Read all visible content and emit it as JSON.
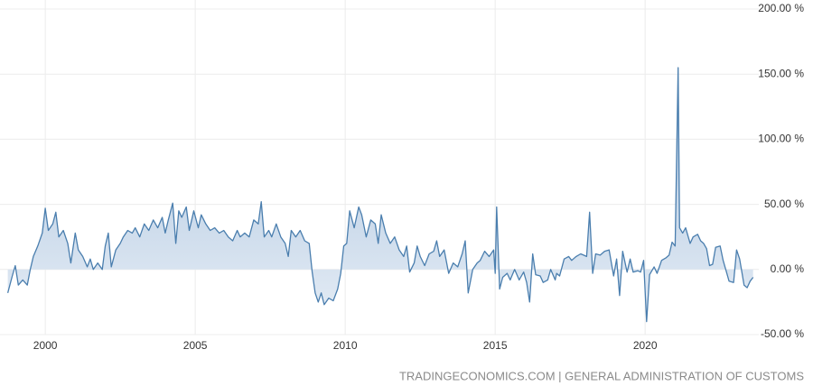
{
  "chart_data": {
    "type": "area",
    "source": "TRADINGECONOMICS.COM | GENERAL ADMINISTRATION OF CUSTOMS",
    "xlim": [
      1998.49,
      2023.79
    ],
    "xticks": [
      2000,
      2005,
      2010,
      2015,
      2020
    ],
    "ylim": [
      -50,
      200
    ],
    "yticks": [
      {
        "value": 200,
        "label": "200.00 %"
      },
      {
        "value": 150,
        "label": "150.00 %"
      },
      {
        "value": 100,
        "label": "100.00 %"
      },
      {
        "value": 50,
        "label": "50.00 %"
      },
      {
        "value": 0,
        "label": "0.00 %"
      },
      {
        "value": -50,
        "label": "-50.00 %"
      }
    ],
    "grid": true,
    "series": [
      {
        "color": "#4a7eae",
        "x": [
          1998.75,
          1998.9,
          1999.0,
          1999.1,
          1999.25,
          1999.4,
          1999.5,
          1999.6,
          1999.75,
          1999.9,
          2000.0,
          2000.1,
          2000.25,
          2000.35,
          2000.45,
          2000.6,
          2000.75,
          2000.85,
          2001.0,
          2001.1,
          2001.25,
          2001.4,
          2001.5,
          2001.6,
          2001.75,
          2001.9,
          2002.0,
          2002.1,
          2002.2,
          2002.35,
          2002.5,
          2002.6,
          2002.75,
          2002.9,
          2003.0,
          2003.15,
          2003.3,
          2003.45,
          2003.6,
          2003.75,
          2003.9,
          2004.0,
          2004.1,
          2004.25,
          2004.35,
          2004.45,
          2004.55,
          2004.7,
          2004.8,
          2004.95,
          2005.1,
          2005.2,
          2005.35,
          2005.5,
          2005.65,
          2005.8,
          2005.95,
          2006.1,
          2006.25,
          2006.4,
          2006.5,
          2006.65,
          2006.8,
          2006.95,
          2007.1,
          2007.2,
          2007.3,
          2007.45,
          2007.55,
          2007.7,
          2007.85,
          2008.0,
          2008.1,
          2008.2,
          2008.35,
          2008.5,
          2008.65,
          2008.8,
          2008.9,
          2009.0,
          2009.1,
          2009.2,
          2009.3,
          2009.45,
          2009.6,
          2009.75,
          2009.85,
          2009.95,
          2010.05,
          2010.15,
          2010.3,
          2010.45,
          2010.55,
          2010.7,
          2010.85,
          2011.0,
          2011.1,
          2011.2,
          2011.35,
          2011.5,
          2011.65,
          2011.8,
          2011.95,
          2012.05,
          2012.15,
          2012.3,
          2012.4,
          2012.5,
          2012.65,
          2012.8,
          2012.95,
          2013.05,
          2013.15,
          2013.3,
          2013.45,
          2013.6,
          2013.75,
          2013.9,
          2014.0,
          2014.1,
          2014.25,
          2014.4,
          2014.5,
          2014.65,
          2014.8,
          2014.95,
          2015.0,
          2015.05,
          2015.15,
          2015.25,
          2015.4,
          2015.5,
          2015.65,
          2015.8,
          2015.95,
          2016.05,
          2016.15,
          2016.25,
          2016.35,
          2016.5,
          2016.6,
          2016.75,
          2016.85,
          2017.0,
          2017.05,
          2017.15,
          2017.3,
          2017.45,
          2017.55,
          2017.7,
          2017.85,
          2017.95,
          2018.05,
          2018.15,
          2018.25,
          2018.35,
          2018.5,
          2018.65,
          2018.8,
          2018.95,
          2019.05,
          2019.15,
          2019.25,
          2019.4,
          2019.5,
          2019.6,
          2019.75,
          2019.85,
          2019.95,
          2020.05,
          2020.15,
          2020.3,
          2020.4,
          2020.55,
          2020.7,
          2020.8,
          2020.9,
          2021.0,
          2021.1,
          2021.15,
          2021.25,
          2021.35,
          2021.5,
          2021.6,
          2021.75,
          2021.85,
          2021.95,
          2022.05,
          2022.15,
          2022.25,
          2022.35,
          2022.5,
          2022.6,
          2022.7,
          2022.8,
          2022.95,
          2023.05,
          2023.15,
          2023.3,
          2023.4,
          2023.5,
          2023.6
        ],
        "values": [
          -18,
          -5,
          3,
          -12,
          -8,
          -12,
          0,
          10,
          18,
          28,
          47,
          30,
          35,
          44,
          25,
          30,
          20,
          5,
          28,
          15,
          10,
          2,
          8,
          0,
          5,
          0,
          18,
          28,
          2,
          15,
          20,
          25,
          30,
          28,
          32,
          25,
          35,
          30,
          38,
          32,
          40,
          28,
          38,
          51,
          20,
          45,
          40,
          48,
          30,
          45,
          32,
          42,
          35,
          30,
          32,
          28,
          30,
          25,
          22,
          30,
          25,
          28,
          25,
          38,
          35,
          52,
          25,
          30,
          25,
          35,
          25,
          20,
          10,
          30,
          25,
          30,
          22,
          20,
          -2,
          -18,
          -25,
          -18,
          -27,
          -22,
          -24,
          -15,
          -3,
          18,
          20,
          45,
          32,
          48,
          42,
          25,
          38,
          35,
          20,
          42,
          28,
          20,
          25,
          15,
          10,
          18,
          -2,
          5,
          18,
          10,
          3,
          12,
          14,
          22,
          10,
          15,
          -3,
          5,
          2,
          12,
          22,
          -18,
          0,
          5,
          7,
          14,
          10,
          15,
          -3,
          48,
          -15,
          -6,
          -3,
          -8,
          0,
          -8,
          -2,
          -10,
          -25,
          12,
          -4,
          -5,
          -10,
          -8,
          0,
          -8,
          -3,
          -5,
          8,
          10,
          7,
          10,
          12,
          11,
          10,
          44,
          -3,
          12,
          11,
          14,
          15,
          -5,
          8,
          -20,
          14,
          -2,
          8,
          -2,
          -1,
          -2,
          7,
          -40,
          -4,
          2,
          -3,
          7,
          9,
          11,
          21,
          18,
          155,
          32,
          28,
          32,
          20,
          25,
          27,
          22,
          20,
          16,
          3,
          4,
          17,
          18,
          7,
          -1,
          -9,
          -10,
          15,
          8,
          -12,
          -14,
          -9,
          -6
        ]
      }
    ]
  }
}
